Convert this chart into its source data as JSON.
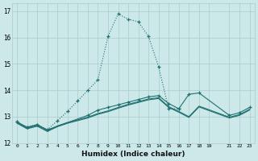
{
  "xlabel": "Humidex (Indice chaleur)",
  "bg_color": "#cce8e8",
  "grid_color": "#aacccc",
  "line_color": "#1f7070",
  "xlim": [
    -0.5,
    23.5
  ],
  "ylim": [
    12.0,
    17.3
  ],
  "yticks": [
    12,
    13,
    14,
    15,
    16,
    17
  ],
  "xticks": [
    0,
    1,
    2,
    3,
    4,
    5,
    6,
    7,
    8,
    9,
    10,
    11,
    12,
    13,
    14,
    15,
    16,
    17,
    18,
    19,
    21,
    22,
    23
  ],
  "curve1": {
    "x": [
      0,
      1,
      2,
      3,
      4,
      5,
      6,
      7,
      8,
      9,
      10,
      11,
      12,
      13,
      14,
      15,
      16
    ],
    "y": [
      12.8,
      12.6,
      12.7,
      12.5,
      12.85,
      13.2,
      13.6,
      14.0,
      14.4,
      16.05,
      16.9,
      16.7,
      16.6,
      16.05,
      14.9,
      13.3,
      13.3
    ]
  },
  "curve2": {
    "x": [
      0,
      1,
      2,
      3,
      7,
      8,
      9,
      10,
      11,
      12,
      13,
      14,
      15,
      16,
      17,
      18,
      21,
      22,
      23
    ],
    "y": [
      12.8,
      12.6,
      12.7,
      12.5,
      13.05,
      13.25,
      13.35,
      13.45,
      13.55,
      13.65,
      13.75,
      13.8,
      13.5,
      13.3,
      13.85,
      13.9,
      13.05,
      13.15,
      13.35
    ]
  },
  "curve3": {
    "x": [
      0,
      1,
      2,
      3,
      4,
      5,
      6,
      7,
      8,
      9,
      10,
      11,
      12,
      13,
      14,
      15,
      16,
      17,
      18,
      21,
      22,
      23
    ],
    "y": [
      12.78,
      12.57,
      12.67,
      12.47,
      12.65,
      12.78,
      12.88,
      12.98,
      13.12,
      13.22,
      13.35,
      13.47,
      13.57,
      13.67,
      13.72,
      13.38,
      13.2,
      13.0,
      13.4,
      12.98,
      13.08,
      13.28
    ]
  },
  "curve4": {
    "x": [
      0,
      1,
      2,
      3,
      4,
      5,
      6,
      7,
      8,
      9,
      10,
      11,
      12,
      13,
      14,
      15,
      16,
      17,
      18,
      21,
      22,
      23
    ],
    "y": [
      12.75,
      12.54,
      12.64,
      12.44,
      12.62,
      12.75,
      12.85,
      12.95,
      13.09,
      13.19,
      13.32,
      13.44,
      13.54,
      13.64,
      13.69,
      13.35,
      13.17,
      12.97,
      13.37,
      12.95,
      13.05,
      13.25
    ]
  }
}
